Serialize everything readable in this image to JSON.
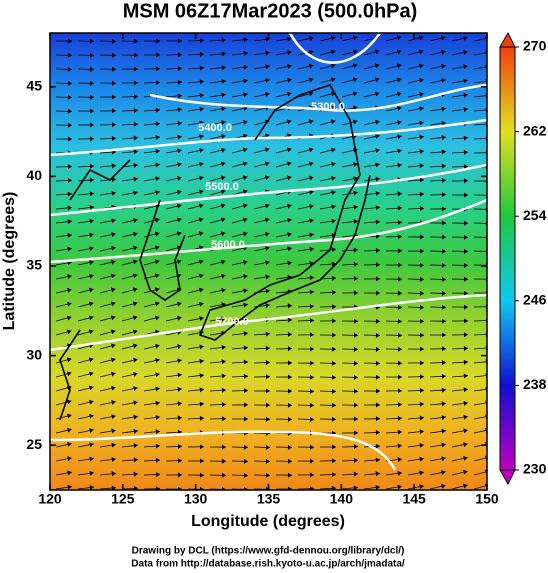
{
  "map": {
    "title": "MSM 06Z17Mar2023 (500.0hPa)",
    "xlabel": "Longitude (degrees)",
    "ylabel": "Latitude  (degrees)",
    "xlim": [
      120,
      150
    ],
    "ylim": [
      22.5,
      48
    ],
    "xticks": [
      120,
      125,
      130,
      135,
      140,
      145,
      150
    ],
    "yticks": [
      25,
      30,
      35,
      40,
      45
    ],
    "colorbar": {
      "lim": [
        230,
        270
      ],
      "ticks": [
        230,
        238,
        246,
        254,
        262,
        270
      ]
    },
    "contour_labels": [
      "5300.0",
      "5400.0",
      "5500.0",
      "5600.0",
      "5700.0"
    ],
    "footer": [
      "Drawing by DCL (https://www.gfd-dennou.org/library/dcl/)",
      "Data from http://database.rish.kyoto-u.ac.jp/arch/jmadata/"
    ]
  }
}
